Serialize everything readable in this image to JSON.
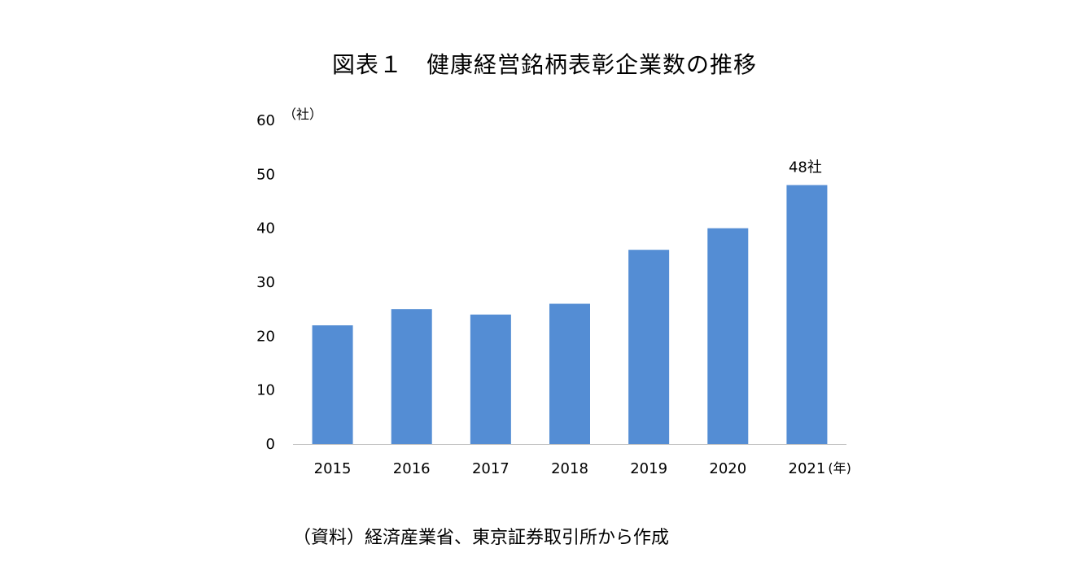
{
  "title": "図表１　健康経営銘柄表彰企業数の推移",
  "source_note": "（資料）経済産業省、東京証券取引所から作成",
  "chart_data": {
    "type": "bar",
    "title": "図表１　健康経営銘柄表彰企業数の推移",
    "y_unit": "（社）",
    "x_unit": "(年)",
    "categories": [
      "2015",
      "2016",
      "2017",
      "2018",
      "2019",
      "2020",
      "2021"
    ],
    "values": [
      22,
      25,
      24,
      26,
      36,
      40,
      48
    ],
    "ylim": [
      0,
      60
    ],
    "yticks": [
      0,
      10,
      20,
      30,
      40,
      50,
      60
    ],
    "grid": false,
    "legend": "none",
    "bar_color": "#548dd4",
    "annotations": [
      {
        "category": "2021",
        "text": "48社"
      }
    ]
  }
}
